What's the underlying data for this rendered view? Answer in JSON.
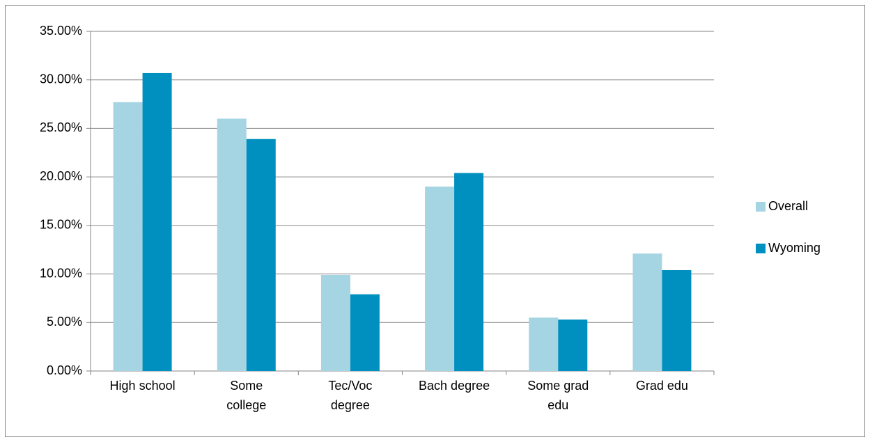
{
  "chart_data": {
    "type": "bar",
    "categories": [
      "High school",
      "Some college",
      "Tec/Voc degree",
      "Bach degree",
      "Some grad edu",
      "Grad edu"
    ],
    "series": [
      {
        "name": "Overall",
        "color": "#a5d5e2",
        "values": [
          27.7,
          26.0,
          9.9,
          19.0,
          5.5,
          12.1
        ]
      },
      {
        "name": "Wyoming",
        "color": "#0090c0",
        "values": [
          30.7,
          23.9,
          7.9,
          20.4,
          5.3,
          10.4
        ]
      }
    ],
    "ylim": [
      0,
      35
    ],
    "yticks": [
      {
        "value": 0,
        "label": "0.00%"
      },
      {
        "value": 5,
        "label": "5.00%"
      },
      {
        "value": 10,
        "label": "10.00%"
      },
      {
        "value": 15,
        "label": "15.00%"
      },
      {
        "value": 20,
        "label": "20.00%"
      },
      {
        "value": 25,
        "label": "25.00%"
      },
      {
        "value": 30,
        "label": "30.00%"
      },
      {
        "value": 35,
        "label": "35.00%"
      }
    ],
    "grid": true,
    "legend": "right"
  }
}
